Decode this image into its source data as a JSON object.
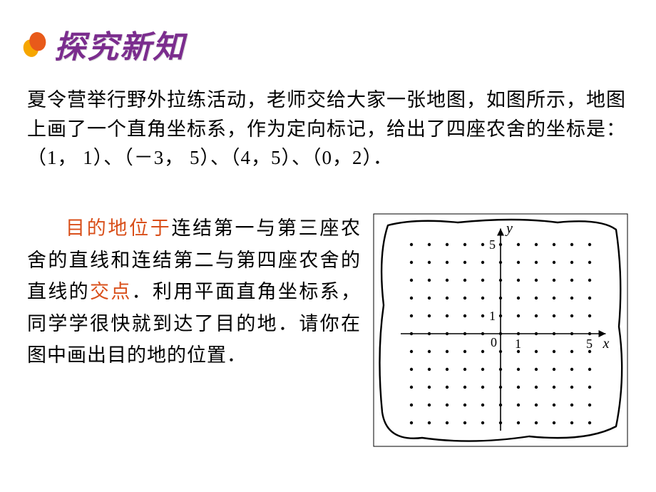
{
  "header": {
    "title": "探究新知",
    "bullet_colors": {
      "back": "#f6a600",
      "front": "#e85a1a"
    }
  },
  "paragraph1": {
    "p1": "夏令营举行野外拉练活动，老师交给大家一张地图，如图所示，地图上画了一个直角坐标系，作为定向标记，给出了四座农舍的坐标是：（1， 1）、（－3， 5）、（4，5）、（0，2）．"
  },
  "paragraph2": {
    "a": "目的地位于",
    "b": "连结第一与第三座农舍的直线和连结第二与第四座农舍的直线的",
    "c": "交点",
    "d": "．利用平面直角坐标系，同学学很快就到达了目的地．请你在图中画出目的地的位置．"
  },
  "chart": {
    "type": "coordinate-grid",
    "x_range": [
      -5,
      5
    ],
    "y_range": [
      -5,
      5
    ],
    "x_ticks_labeled": [
      1,
      5
    ],
    "y_ticks_labeled": [
      1,
      5
    ],
    "x_label": "x",
    "y_label": "y",
    "origin_label": "0",
    "dot_radius": 2.2,
    "dot_color": "#000000",
    "axis_color": "#000000",
    "axis_width": 1.6,
    "tick_label_fontsize": 18,
    "axis_label_fontsize": 20,
    "grid_step": 25,
    "background": "#ffffff",
    "map_border": "#000000"
  }
}
